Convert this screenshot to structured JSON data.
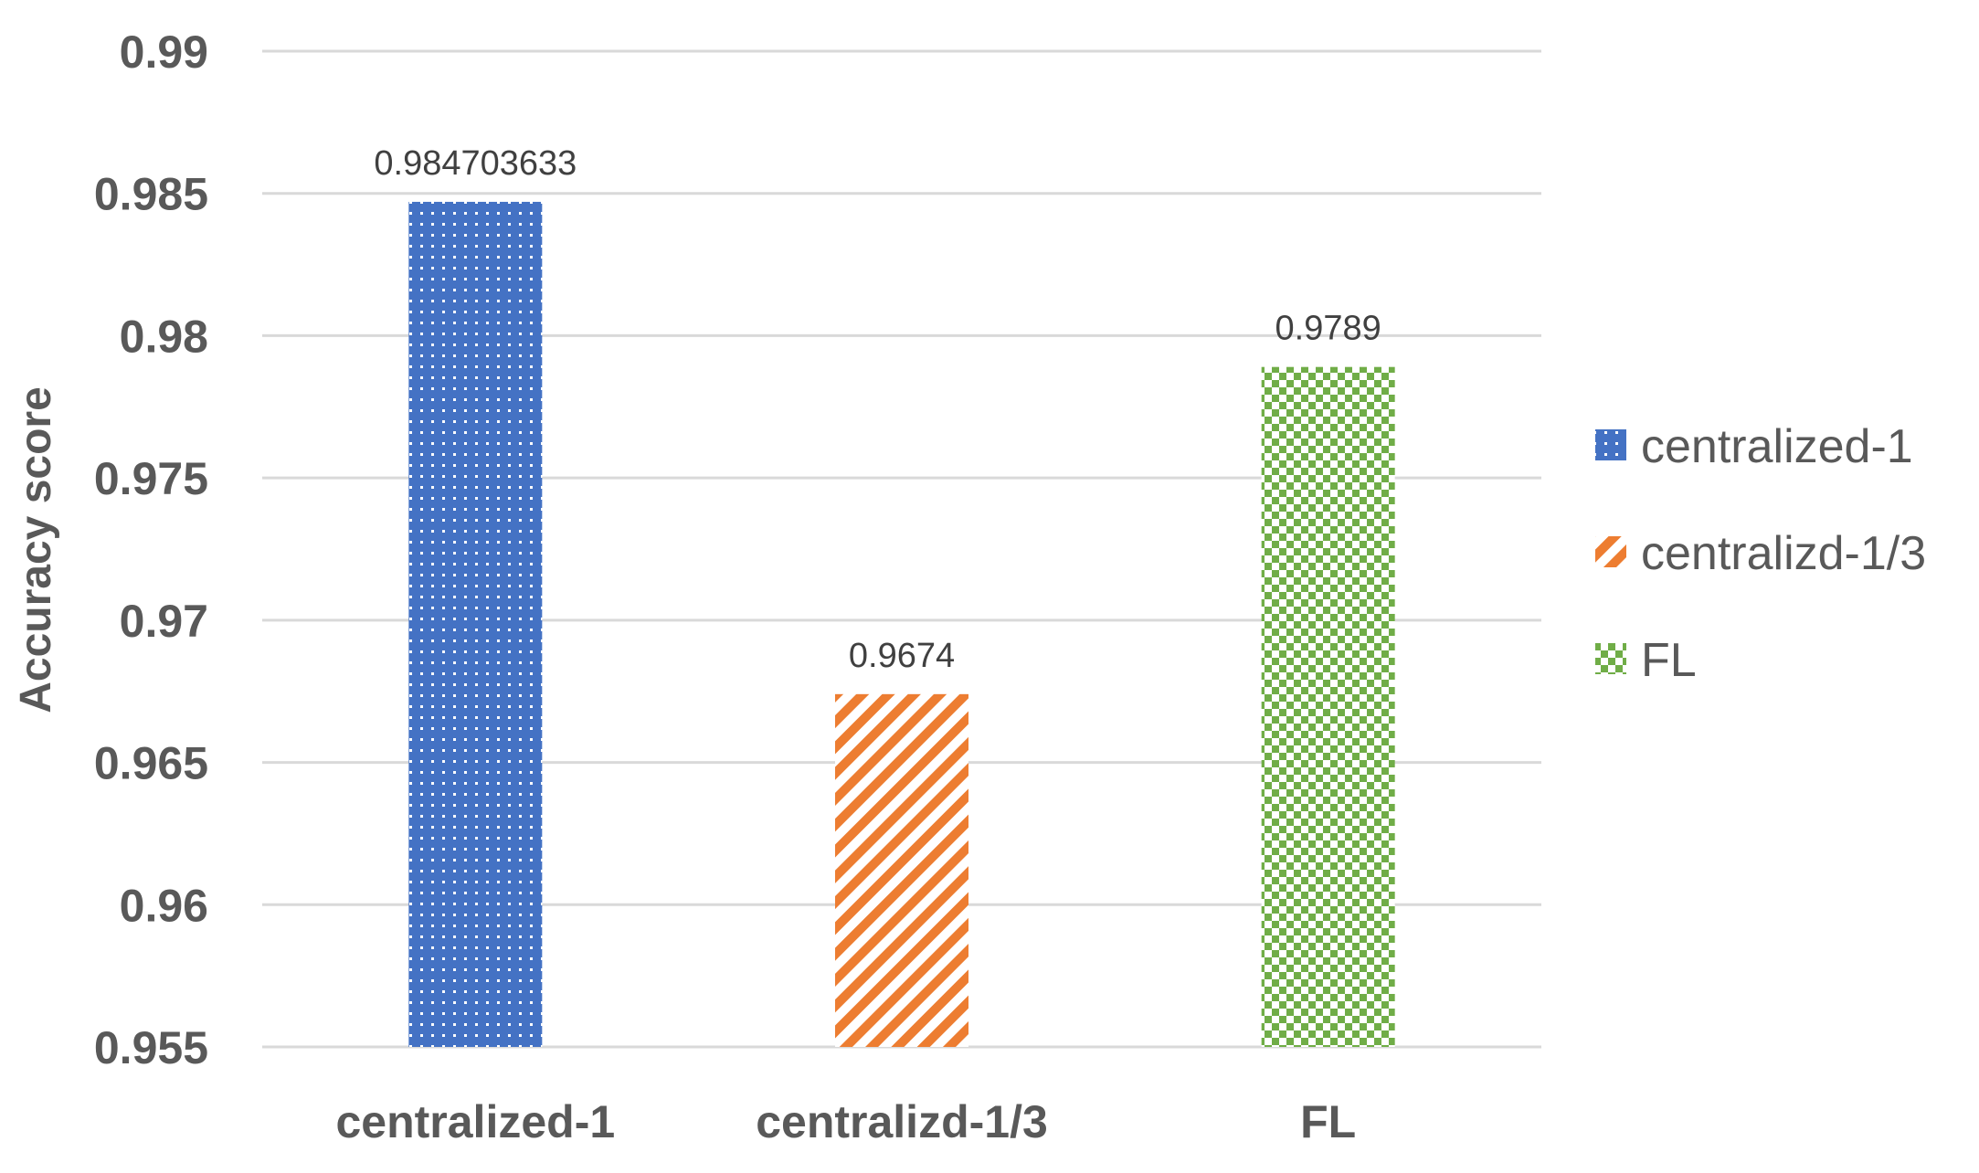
{
  "chart_data": {
    "type": "bar",
    "title": "",
    "xlabel": "",
    "ylabel": "Accuracy score",
    "ylim": [
      0.955,
      0.99
    ],
    "yticks": [
      "0.955",
      "0.96",
      "0.965",
      "0.97",
      "0.975",
      "0.98",
      "0.985",
      "0.99"
    ],
    "categories": [
      "centralized-1",
      "centralizd-1/3",
      "FL"
    ],
    "values": [
      0.984703633,
      0.9674,
      0.9789
    ],
    "data_labels": [
      "0.984703633",
      "0.9674",
      "0.9789"
    ],
    "colors": [
      "#4472c4",
      "#ed7d31",
      "#70ad47"
    ],
    "patterns": [
      "dots",
      "diagonal-stripes",
      "checkerboard"
    ],
    "grid": true,
    "legend": {
      "position": "right",
      "entries": [
        "centralized-1",
        "centralizd-1/3",
        "FL"
      ]
    }
  }
}
